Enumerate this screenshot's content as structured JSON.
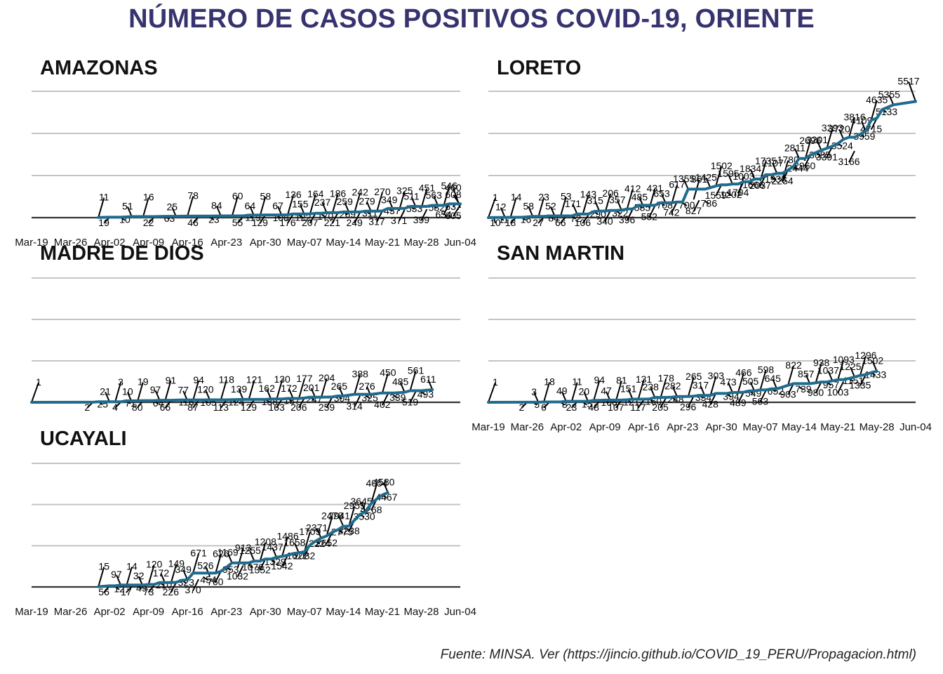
{
  "title": "NÚMERO DE CASOS POSITIVOS COVID-19, ORIENTE",
  "source": "Fuente: MINSA. Ver (https://jincio.github.io/COVID_19_PERU/Propagacion.html)",
  "colors": {
    "title": "#36336f",
    "line": "#1f6b8e",
    "grid": "#c4c4c4",
    "axis": "#333333"
  },
  "chart_data": [
    {
      "type": "line",
      "title": "AMAZONAS",
      "x_range": [
        "Mar-19",
        "Jun-04"
      ],
      "x_ticks": [
        "Mar-19",
        "Mar-26",
        "Apr-02",
        "Apr-09",
        "Apr-16",
        "Apr-23",
        "Apr-30",
        "May-07",
        "May-14",
        "May-21",
        "May-28",
        "Jun-04"
      ],
      "ylim": [
        0,
        6000
      ],
      "grid": true,
      "points": [
        [
          "Mar-31",
          11
        ],
        [
          "Apr-02",
          19
        ],
        [
          "Apr-04",
          10
        ],
        [
          "Apr-06",
          51
        ],
        [
          "Apr-08",
          16
        ],
        [
          "Apr-10",
          22
        ],
        [
          "Apr-12",
          63
        ],
        [
          "Apr-14",
          25
        ],
        [
          "Apr-16",
          78
        ],
        [
          "Apr-18",
          46
        ],
        [
          "Apr-20",
          23
        ],
        [
          "Apr-22",
          84
        ],
        [
          "Apr-24",
          60
        ],
        [
          "Apr-26",
          55
        ],
        [
          "Apr-27",
          119
        ],
        [
          "Apr-28",
          64
        ],
        [
          "Apr-29",
          58
        ],
        [
          "Apr-30",
          129
        ],
        [
          "May-02",
          108
        ],
        [
          "May-03",
          67
        ],
        [
          "May-04",
          136
        ],
        [
          "May-05",
          176
        ],
        [
          "May-06",
          122
        ],
        [
          "May-07",
          155
        ],
        [
          "May-08",
          164
        ],
        [
          "May-09",
          207
        ],
        [
          "May-10",
          170
        ],
        [
          "May-11",
          237
        ],
        [
          "May-12",
          186
        ],
        [
          "May-13",
          221
        ],
        [
          "May-14",
          269
        ],
        [
          "May-15",
          259
        ],
        [
          "May-16",
          242
        ],
        [
          "May-17",
          249
        ],
        [
          "May-18",
          311
        ],
        [
          "May-19",
          279
        ],
        [
          "May-20",
          270
        ],
        [
          "May-21",
          317
        ],
        [
          "May-22",
          437
        ],
        [
          "May-23",
          349
        ],
        [
          "May-24",
          325
        ],
        [
          "May-25",
          371
        ],
        [
          "May-26",
          533
        ],
        [
          "May-27",
          511
        ],
        [
          "May-28",
          451
        ],
        [
          "May-29",
          399
        ],
        [
          "May-30",
          582
        ],
        [
          "May-31",
          563
        ],
        [
          "Jun-01",
          546
        ],
        [
          "Jun-02",
          654
        ],
        [
          "Jun-03",
          637
        ],
        [
          "Jun-04",
          608
        ],
        [
          "Jun-04",
          460
        ],
        [
          "Jun-04",
          605
        ]
      ]
    },
    {
      "type": "line",
      "title": "LORETO",
      "x_range": [
        "Mar-19",
        "Jun-04"
      ],
      "ylim": [
        0,
        6000
      ],
      "grid": true,
      "points": [
        [
          "Mar-19",
          1
        ],
        [
          "Mar-20",
          10
        ],
        [
          "Mar-21",
          11
        ],
        [
          "Mar-22",
          12
        ],
        [
          "Mar-23",
          14
        ],
        [
          "Mar-24",
          18
        ],
        [
          "Mar-25",
          16
        ],
        [
          "Mar-27",
          58
        ],
        [
          "Mar-28",
          23
        ],
        [
          "Mar-29",
          27
        ],
        [
          "Mar-30",
          84
        ],
        [
          "Mar-31",
          52
        ],
        [
          "Apr-01",
          53
        ],
        [
          "Apr-02",
          66
        ],
        [
          "Apr-03",
          72
        ],
        [
          "Apr-04",
          171
        ],
        [
          "Apr-05",
          143
        ],
        [
          "Apr-06",
          106
        ],
        [
          "Apr-07",
          290
        ],
        [
          "Apr-08",
          315
        ],
        [
          "Apr-09",
          206
        ],
        [
          "Apr-10",
          340
        ],
        [
          "Apr-11",
          322
        ],
        [
          "Apr-12",
          357
        ],
        [
          "Apr-13",
          412
        ],
        [
          "Apr-14",
          396
        ],
        [
          "Apr-15",
          585
        ],
        [
          "Apr-16",
          485
        ],
        [
          "Apr-17",
          431
        ],
        [
          "Apr-18",
          552
        ],
        [
          "Apr-19",
          708
        ],
        [
          "Apr-20",
          653
        ],
        [
          "Apr-21",
          617
        ],
        [
          "Apr-22",
          742
        ],
        [
          "Apr-23",
          700
        ],
        [
          "Apr-24",
          1355
        ],
        [
          "Apr-25",
          861
        ],
        [
          "Apr-26",
          827
        ],
        [
          "Apr-27",
          786
        ],
        [
          "Apr-28",
          1425
        ],
        [
          "Apr-29",
          1502
        ],
        [
          "Apr-30",
          1559
        ],
        [
          "May-01",
          1202
        ],
        [
          "May-02",
          1595
        ],
        [
          "May-03",
          1003
        ],
        [
          "May-04",
          1704
        ],
        [
          "May-05",
          1666
        ],
        [
          "May-06",
          1834
        ],
        [
          "May-07",
          1735
        ],
        [
          "May-08",
          2037
        ],
        [
          "May-09",
          1933
        ],
        [
          "May-10",
          2107
        ],
        [
          "May-11",
          1780
        ],
        [
          "May-12",
          2254
        ],
        [
          "May-13",
          2444
        ],
        [
          "May-14",
          2811
        ],
        [
          "May-15",
          2696
        ],
        [
          "May-16",
          2960
        ],
        [
          "May-17",
          3085
        ],
        [
          "May-18",
          3201
        ],
        [
          "May-19",
          3293
        ],
        [
          "May-20",
          3391
        ],
        [
          "May-21",
          3524
        ],
        [
          "May-22",
          3720
        ],
        [
          "May-23",
          3816
        ],
        [
          "May-24",
          3166
        ],
        [
          "May-25",
          3959
        ],
        [
          "May-26",
          4109
        ],
        [
          "May-27",
          4635
        ],
        [
          "May-28",
          4715
        ],
        [
          "May-29",
          5133
        ],
        [
          "May-31",
          5355
        ],
        [
          "Jun-04",
          5517
        ]
      ]
    },
    {
      "type": "line",
      "title": "MADRE DE DIOS",
      "x_range": [
        "Mar-19",
        "Jun-04"
      ],
      "ylim": [
        0,
        6000
      ],
      "grid": true,
      "points": [
        [
          "Mar-19",
          1
        ],
        [
          "Mar-30",
          2
        ],
        [
          "Mar-31",
          25
        ],
        [
          "Apr-02",
          21
        ],
        [
          "Apr-03",
          3
        ],
        [
          "Apr-04",
          4
        ],
        [
          "Apr-05",
          71
        ],
        [
          "Apr-06",
          10
        ],
        [
          "Apr-07",
          19
        ],
        [
          "Apr-08",
          80
        ],
        [
          "Apr-10",
          64
        ],
        [
          "Apr-11",
          97
        ],
        [
          "Apr-12",
          91
        ],
        [
          "Apr-13",
          66
        ],
        [
          "Apr-15",
          116
        ],
        [
          "Apr-16",
          77
        ],
        [
          "Apr-17",
          94
        ],
        [
          "Apr-18",
          87
        ],
        [
          "Apr-19",
          105
        ],
        [
          "Apr-20",
          120
        ],
        [
          "Apr-22",
          118
        ],
        [
          "Apr-23",
          113
        ],
        [
          "Apr-24",
          124
        ],
        [
          "Apr-26",
          139
        ],
        [
          "Apr-27",
          121
        ],
        [
          "Apr-28",
          129
        ],
        [
          "Apr-30",
          138
        ],
        [
          "May-01",
          162
        ],
        [
          "May-02",
          130
        ],
        [
          "May-03",
          163
        ],
        [
          "May-04",
          187
        ],
        [
          "May-05",
          172
        ],
        [
          "May-06",
          177
        ],
        [
          "May-07",
          206
        ],
        [
          "May-08",
          247
        ],
        [
          "May-09",
          201
        ],
        [
          "May-10",
          204
        ],
        [
          "May-12",
          259
        ],
        [
          "May-13",
          304
        ],
        [
          "May-14",
          265
        ],
        [
          "May-16",
          388
        ],
        [
          "May-17",
          314
        ],
        [
          "May-18",
          325
        ],
        [
          "May-19",
          276
        ],
        [
          "May-21",
          450
        ],
        [
          "May-22",
          402
        ],
        [
          "May-23",
          339
        ],
        [
          "May-25",
          485
        ],
        [
          "May-26",
          561
        ],
        [
          "May-27",
          519
        ],
        [
          "May-28",
          493
        ],
        [
          "May-30",
          611
        ]
      ]
    },
    {
      "type": "line",
      "title": "SAN MARTIN",
      "x_range": [
        "Mar-19",
        "Jun-04"
      ],
      "x_ticks": [
        "Mar-19",
        "Mar-26",
        "Apr-02",
        "Apr-09",
        "Apr-16",
        "Apr-23",
        "Apr-30",
        "May-07",
        "May-14",
        "May-21",
        "May-28",
        "Jun-04"
      ],
      "ylim": [
        0,
        6000
      ],
      "grid": true,
      "points": [
        [
          "Mar-19",
          1
        ],
        [
          "Mar-26",
          2
        ],
        [
          "Mar-27",
          5
        ],
        [
          "Mar-28",
          3
        ],
        [
          "Mar-29",
          18
        ],
        [
          "Mar-30",
          6
        ],
        [
          "Apr-01",
          8
        ],
        [
          "Apr-02",
          49
        ],
        [
          "Apr-03",
          11
        ],
        [
          "Apr-04",
          23
        ],
        [
          "Apr-05",
          15
        ],
        [
          "Apr-06",
          20
        ],
        [
          "Apr-07",
          94
        ],
        [
          "Apr-08",
          48
        ],
        [
          "Apr-09",
          106
        ],
        [
          "Apr-10",
          47
        ],
        [
          "Apr-11",
          81
        ],
        [
          "Apr-12",
          107
        ],
        [
          "Apr-13",
          121
        ],
        [
          "Apr-14",
          151
        ],
        [
          "Apr-15",
          131
        ],
        [
          "Apr-16",
          117
        ],
        [
          "Apr-17",
          160
        ],
        [
          "Apr-18",
          238
        ],
        [
          "Apr-19",
          178
        ],
        [
          "Apr-20",
          205
        ],
        [
          "Apr-21",
          248
        ],
        [
          "Apr-22",
          282
        ],
        [
          "Apr-24",
          265
        ],
        [
          "Apr-25",
          296
        ],
        [
          "Apr-26",
          334
        ],
        [
          "Apr-27",
          317
        ],
        [
          "Apr-28",
          303
        ],
        [
          "Apr-29",
          428
        ],
        [
          "May-01",
          394
        ],
        [
          "May-02",
          473
        ],
        [
          "May-03",
          466
        ],
        [
          "May-04",
          489
        ],
        [
          "May-05",
          549
        ],
        [
          "May-06",
          505
        ],
        [
          "May-07",
          598
        ],
        [
          "May-08",
          563
        ],
        [
          "May-09",
          652
        ],
        [
          "May-10",
          645
        ],
        [
          "May-12",
          822
        ],
        [
          "May-13",
          903
        ],
        [
          "May-14",
          739
        ],
        [
          "May-16",
          857
        ],
        [
          "May-17",
          938
        ],
        [
          "May-18",
          980
        ],
        [
          "May-19",
          957
        ],
        [
          "May-20",
          1037
        ],
        [
          "May-21",
          1093
        ],
        [
          "May-22",
          1003
        ],
        [
          "May-23",
          1151
        ],
        [
          "May-24",
          1225
        ],
        [
          "May-25",
          1296
        ],
        [
          "May-26",
          1335
        ],
        [
          "May-27",
          1433
        ],
        [
          "May-28",
          1502
        ]
      ]
    },
    {
      "type": "line",
      "title": "UCAYALI",
      "x_range": [
        "Mar-19",
        "Jun-04"
      ],
      "x_ticks": [
        "Mar-19",
        "Mar-26",
        "Apr-02",
        "Apr-09",
        "Apr-16",
        "Apr-23",
        "Apr-30",
        "May-07",
        "May-14",
        "May-21",
        "May-28",
        "Jun-04"
      ],
      "ylim": [
        0,
        6000
      ],
      "grid": true,
      "points": [
        [
          "Mar-31",
          15
        ],
        [
          "Apr-02",
          56
        ],
        [
          "Apr-03",
          12
        ],
        [
          "Apr-04",
          97
        ],
        [
          "Apr-05",
          14
        ],
        [
          "Apr-06",
          17
        ],
        [
          "Apr-07",
          49
        ],
        [
          "Apr-08",
          32
        ],
        [
          "Apr-09",
          120
        ],
        [
          "Apr-10",
          73
        ],
        [
          "Apr-11",
          210
        ],
        [
          "Apr-12",
          172
        ],
        [
          "Apr-13",
          149
        ],
        [
          "Apr-14",
          226
        ],
        [
          "Apr-15",
          323
        ],
        [
          "Apr-16",
          349
        ],
        [
          "Apr-17",
          671
        ],
        [
          "Apr-18",
          370
        ],
        [
          "Apr-19",
          454
        ],
        [
          "Apr-20",
          526
        ],
        [
          "Apr-21",
          626
        ],
        [
          "Apr-22",
          760
        ],
        [
          "Apr-23",
          953
        ],
        [
          "Apr-24",
          1169
        ],
        [
          "Apr-25",
          913
        ],
        [
          "Apr-26",
          1032
        ],
        [
          "Apr-27",
          1076
        ],
        [
          "Apr-28",
          1255
        ],
        [
          "Apr-29",
          1208
        ],
        [
          "Apr-30",
          1352
        ],
        [
          "May-01",
          1329
        ],
        [
          "May-02",
          1437
        ],
        [
          "May-03",
          1486
        ],
        [
          "May-04",
          1542
        ],
        [
          "May-05",
          1622
        ],
        [
          "May-06",
          1658
        ],
        [
          "May-07",
          1709
        ],
        [
          "May-08",
          2032
        ],
        [
          "May-09",
          2224
        ],
        [
          "May-10",
          2371
        ],
        [
          "May-11",
          2478
        ],
        [
          "May-12",
          2652
        ],
        [
          "May-13",
          2775
        ],
        [
          "May-14",
          2941
        ],
        [
          "May-15",
          2959
        ],
        [
          "May-16",
          3238
        ],
        [
          "May-17",
          3530
        ],
        [
          "May-18",
          3645
        ],
        [
          "May-19",
          4054
        ],
        [
          "May-20",
          4268
        ],
        [
          "May-21",
          4467
        ],
        [
          "May-22",
          4580
        ]
      ]
    }
  ]
}
